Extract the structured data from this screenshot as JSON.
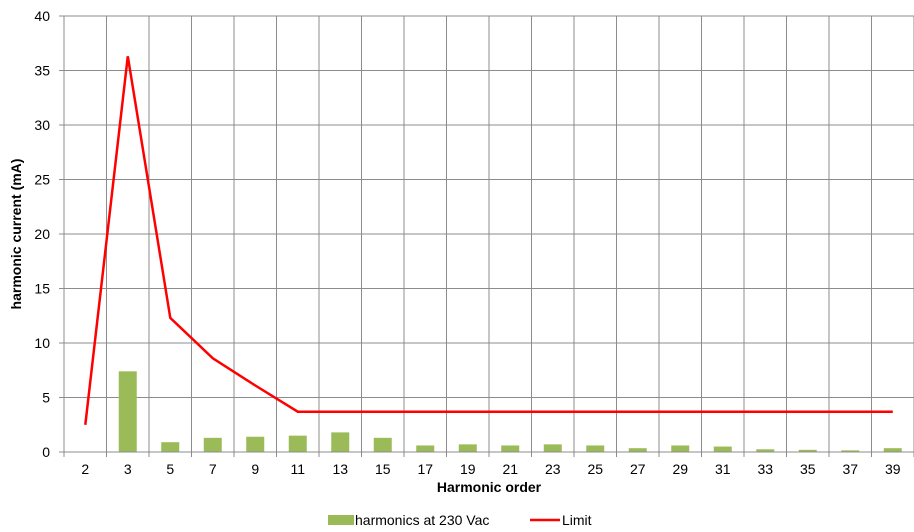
{
  "chart_data": {
    "type": "bar",
    "categories": [
      "2",
      "3",
      "5",
      "7",
      "9",
      "11",
      "13",
      "15",
      "17",
      "19",
      "21",
      "23",
      "25",
      "27",
      "29",
      "31",
      "33",
      "35",
      "37",
      "39"
    ],
    "series": [
      {
        "name": "harmonics at 230 Vac",
        "type": "bar",
        "color": "#9bbb59",
        "values": [
          0,
          7.4,
          0.9,
          1.3,
          1.4,
          1.5,
          1.8,
          1.3,
          0.6,
          0.7,
          0.6,
          0.7,
          0.6,
          0.35,
          0.6,
          0.5,
          0.25,
          0.2,
          0.15,
          0.35
        ]
      },
      {
        "name": "Limit",
        "type": "line",
        "color": "#ff0000",
        "values": [
          2.5,
          36.3,
          12.3,
          8.6,
          6.1,
          3.7,
          3.7,
          3.7,
          3.7,
          3.7,
          3.7,
          3.7,
          3.7,
          3.7,
          3.7,
          3.7,
          3.7,
          3.7,
          3.7,
          3.7
        ]
      }
    ],
    "xlabel": "Harmonic order",
    "ylabel": "harmonic current (mA)",
    "ylim": [
      0,
      40
    ],
    "yticks": [
      0,
      5,
      10,
      15,
      20,
      25,
      30,
      35,
      40
    ],
    "grid": true,
    "legend_position": "bottom"
  }
}
